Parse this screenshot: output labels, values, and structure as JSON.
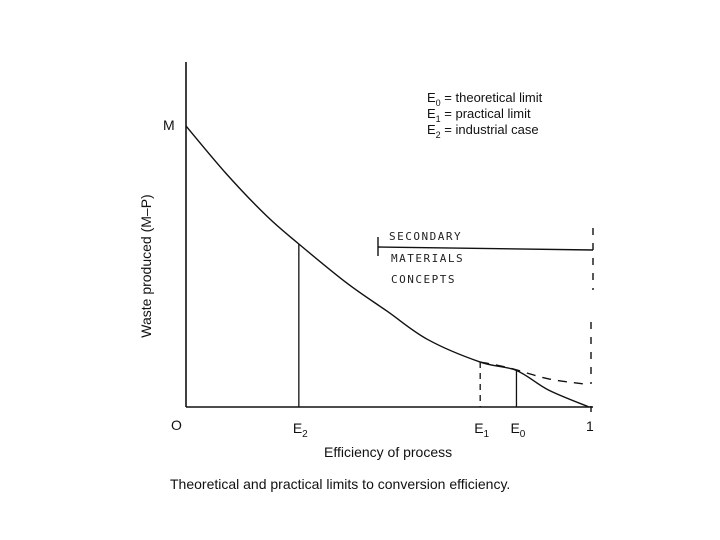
{
  "chart_data": {
    "type": "line",
    "title": "",
    "caption": "Theoretical and practical limits to conversion efficiency.",
    "xlabel": "Efficiency of process",
    "ylabel": "Waste produced (M–P)",
    "origin_label": "O",
    "y_max_label": "M",
    "x_end_label": "1",
    "markers": [
      {
        "label": "E",
        "sub": "2",
        "x": 0.28,
        "style": "solid"
      },
      {
        "label": "E",
        "sub": "1",
        "x": 0.73,
        "style": "dashed"
      },
      {
        "label": "E",
        "sub": "0",
        "x": 0.82,
        "style": "solid"
      }
    ],
    "legend": [
      {
        "symbol": "E",
        "sub": "0",
        "text": " = theoretical limit"
      },
      {
        "symbol": "E",
        "sub": "1",
        "text": " = practical limit"
      },
      {
        "symbol": "E",
        "sub": "2",
        "text": " = industrial case"
      }
    ],
    "series": [
      {
        "style": "solid",
        "x": [
          0,
          0.1,
          0.2,
          0.28,
          0.4,
          0.5,
          0.6,
          0.73,
          0.82,
          0.9,
          1.0
        ],
        "y": [
          1.0,
          0.83,
          0.68,
          0.58,
          0.44,
          0.34,
          0.24,
          0.16,
          0.13,
          0.06,
          0.0
        ]
      },
      {
        "style": "dashed",
        "x": [
          0.73,
          0.8,
          0.9,
          1.0
        ],
        "y": [
          0.16,
          0.14,
          0.1,
          0.08
        ]
      }
    ],
    "annotation": {
      "lines": [
        "SECONDARY",
        "MATERIALS",
        "CONCEPTS"
      ]
    }
  }
}
